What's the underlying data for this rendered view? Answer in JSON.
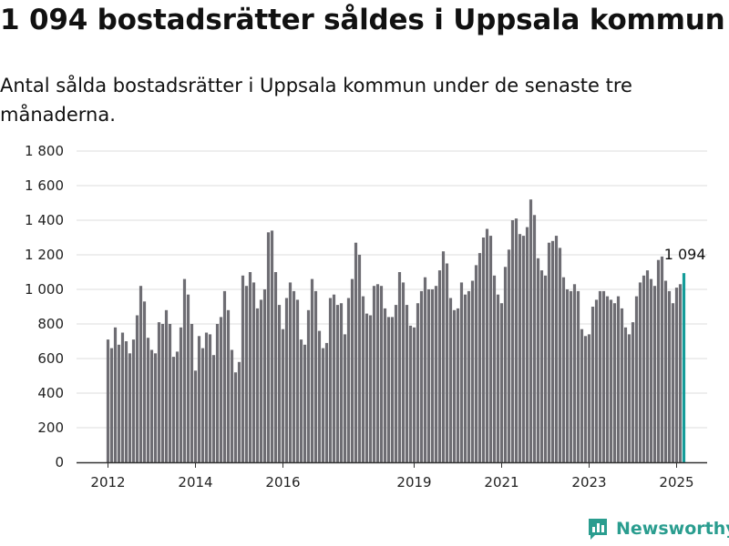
{
  "title": "1 094 bostadsrätter såldes i Uppsala kommun",
  "subtitle": "Antal sålda bostadsrätter i Uppsala kommun under de senaste tre månaderna.",
  "brand": {
    "name": "Newsworthy",
    "icon": "newsworthy-logo-icon",
    "color": "#2a9d8f"
  },
  "colors": {
    "bar": "#6e6d73",
    "highlight": "#149c99",
    "grid": "#dddddd",
    "axis": "#333333"
  },
  "chart_data": {
    "type": "bar",
    "xlabel": "",
    "ylabel": "",
    "ylim": [
      0,
      1800
    ],
    "yticks": [
      0,
      200,
      400,
      600,
      800,
      1000,
      1200,
      1400,
      1600,
      1800
    ],
    "ytick_labels": [
      "0",
      "200",
      "400",
      "600",
      "800",
      "1 000",
      "1 200",
      "1 400",
      "1 600",
      "1 800"
    ],
    "x_start": "2012-01",
    "xtick_labels": [
      {
        "label": "2012",
        "month_index": 0
      },
      {
        "label": "2014",
        "month_index": 24
      },
      {
        "label": "2016",
        "month_index": 48
      },
      {
        "label": "2019",
        "month_index": 84
      },
      {
        "label": "2021",
        "month_index": 108
      },
      {
        "label": "2023",
        "month_index": 132
      },
      {
        "label": "2025",
        "month_index": 156
      }
    ],
    "highlight": {
      "value": 1094,
      "label": "1 094"
    },
    "grid": true,
    "values": [
      710,
      660,
      780,
      680,
      750,
      700,
      630,
      710,
      850,
      1020,
      930,
      720,
      650,
      630,
      810,
      800,
      880,
      800,
      610,
      640,
      780,
      1060,
      970,
      800,
      530,
      730,
      660,
      750,
      740,
      620,
      800,
      840,
      990,
      880,
      650,
      520,
      580,
      1080,
      1020,
      1100,
      1040,
      890,
      940,
      1000,
      1330,
      1340,
      1100,
      910,
      770,
      950,
      1040,
      990,
      940,
      710,
      680,
      880,
      1060,
      990,
      760,
      660,
      690,
      950,
      970,
      910,
      920,
      740,
      950,
      1060,
      1270,
      1200,
      960,
      860,
      850,
      1020,
      1030,
      1020,
      890,
      840,
      840,
      910,
      1100,
      1040,
      910,
      790,
      780,
      920,
      990,
      1070,
      1000,
      1000,
      1020,
      1110,
      1220,
      1150,
      950,
      880,
      890,
      1040,
      970,
      990,
      1050,
      1140,
      1210,
      1300,
      1350,
      1310,
      1080,
      970,
      920,
      1130,
      1230,
      1400,
      1410,
      1320,
      1310,
      1360,
      1520,
      1430,
      1180,
      1110,
      1080,
      1270,
      1280,
      1310,
      1240,
      1070,
      1000,
      990,
      1030,
      990,
      770,
      730,
      740,
      900,
      940,
      990,
      990,
      960,
      940,
      920,
      960,
      890,
      780,
      740,
      810,
      960,
      1040,
      1080,
      1110,
      1060,
      1020,
      1170,
      1190,
      1050,
      990,
      920,
      1010,
      1030,
      1094
    ]
  }
}
